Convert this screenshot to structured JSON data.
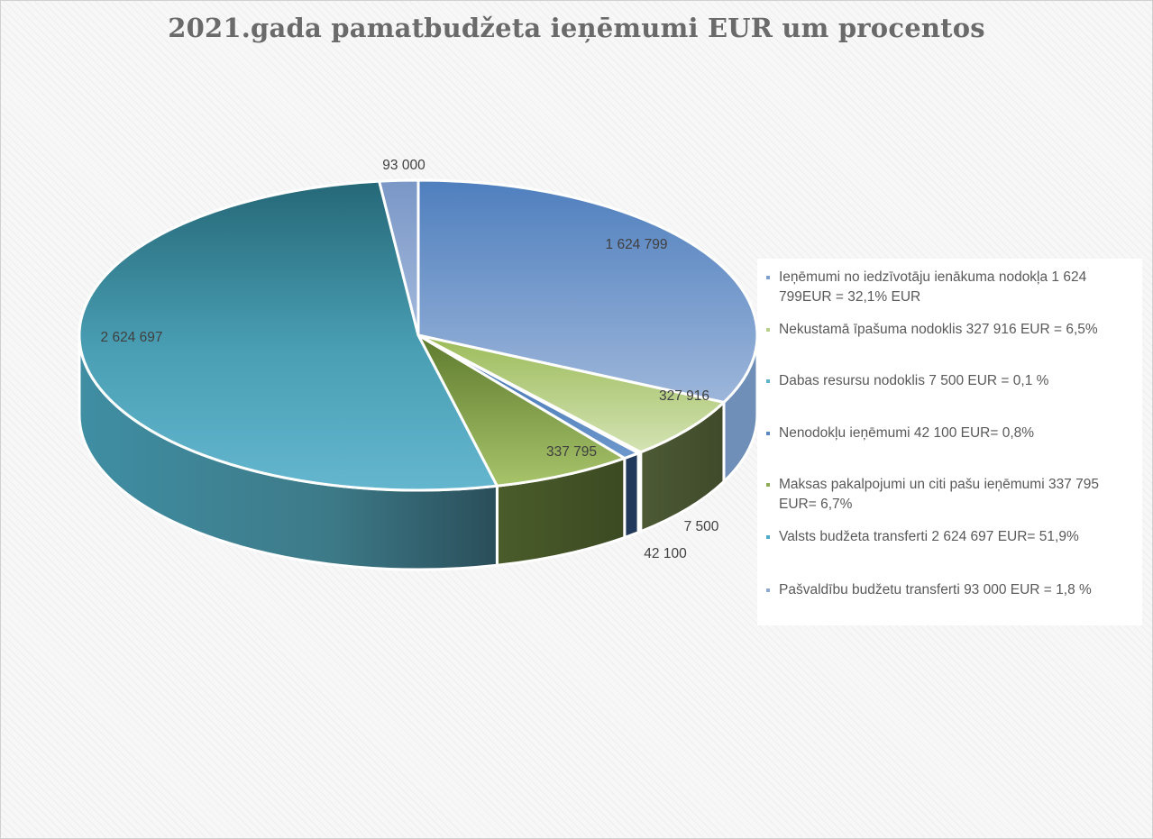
{
  "chart_data": {
    "type": "pie",
    "title": "2021.gada pamatbudžeta ieņēmumi EUR um procentos",
    "legend_position": "right",
    "slices": [
      {
        "value": 1624799,
        "label": "1 624 799",
        "legend": "Ieņēmumi no iedzīvotāju ienākuma nodokļa 1 624 799EUR = 32,1% EUR",
        "color": "#7f9fcb"
      },
      {
        "value": 327916,
        "label": "327 916",
        "legend": "Nekustamā īpašuma nodoklis 327 916 EUR = 6,5%",
        "color": "#b9cf8c"
      },
      {
        "value": 7500,
        "label": "7 500",
        "legend": "Dabas resursu nodoklis 7 500 EUR = 0,1 %",
        "color": "#5fb2c9"
      },
      {
        "value": 42100,
        "label": "42 100",
        "legend": "Nenodokļu ieņēmumi 42 100 EUR=  0,8%",
        "color": "#5b88c0"
      },
      {
        "value": 337795,
        "label": "337 795",
        "legend": "Maksas pakalpojumi un citi pašu ieņēmumi 337 795 EUR= 6,7%",
        "color": "#8fab58"
      },
      {
        "value": 2624697,
        "label": "2 624 697",
        "legend": "Valsts budžeta transferti 2 624 697 EUR=  51,9%",
        "color": "#4eabc6"
      },
      {
        "value": 93000,
        "label": "93 000",
        "legend": "Pašvaldību budžetu transferti 93 000 EUR = 1,8 %",
        "color": "#8fa9d1"
      }
    ]
  }
}
